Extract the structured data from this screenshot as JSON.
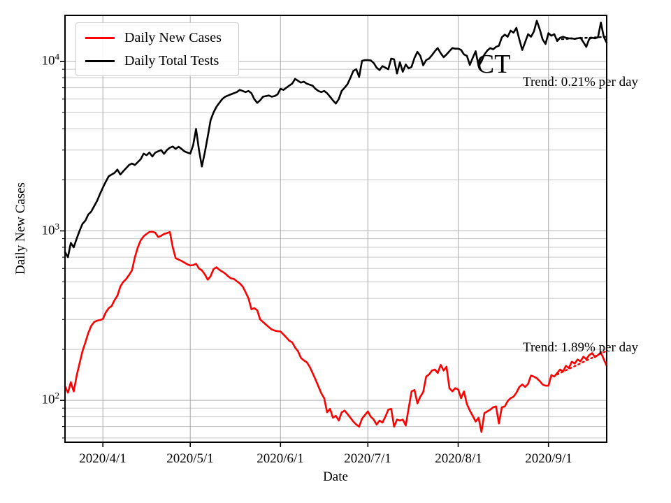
{
  "figure_title": "CT",
  "axes": {
    "x_label": "Date",
    "y_label": "Daily New Cases"
  },
  "legend": {
    "items": [
      {
        "label": "Daily New Cases",
        "color": "#ff0000"
      },
      {
        "label": "Daily Total Tests",
        "color": "#000000"
      }
    ]
  },
  "annotations": [
    {
      "id": "tests-trend",
      "text": "Trend: 0.21% per day"
    },
    {
      "id": "cases-trend",
      "text": "Trend: 1.89% per day"
    }
  ],
  "chart_data": {
    "type": "line",
    "title": "CT",
    "xlabel": "Date",
    "ylabel": "Daily New Cases",
    "y_scale": "log",
    "ylim": [
      56.6,
      18720
    ],
    "grid": true,
    "legend_position": "upper left",
    "x_start_date": "2020/3/19",
    "x_end_date": "2020/9/21",
    "x_ticks": [
      {
        "label": "2020/4/1",
        "day": 13
      },
      {
        "label": "2020/5/1",
        "day": 43
      },
      {
        "label": "2020/6/1",
        "day": 74
      },
      {
        "label": "2020/7/1",
        "day": 104
      },
      {
        "label": "2020/8/1",
        "day": 135
      },
      {
        "label": "2020/9/1",
        "day": 166
      }
    ],
    "y_ticks": [
      {
        "base": "10",
        "exp": "2"
      },
      {
        "base": "10",
        "exp": "3"
      },
      {
        "base": "10",
        "exp": "4"
      }
    ],
    "series": [
      {
        "name": "Daily New Cases",
        "color": "#ff0000",
        "style": "solid",
        "start_day": 0,
        "values": [
          121,
          111,
          128,
          113,
          140,
          165,
          195,
          220,
          250,
          275,
          290,
          295,
          298,
          302,
          330,
          350,
          360,
          390,
          415,
          470,
          500,
          520,
          550,
          585,
          700,
          800,
          880,
          930,
          960,
          985,
          990,
          975,
          920,
          935,
          960,
          970,
          985,
          800,
          690,
          677,
          665,
          650,
          635,
          625,
          628,
          640,
          600,
          585,
          555,
          515,
          540,
          595,
          610,
          590,
          575,
          560,
          540,
          525,
          520,
          505,
          490,
          470,
          435,
          400,
          345,
          350,
          340,
          300,
          290,
          280,
          270,
          262,
          258,
          256,
          255,
          245,
          235,
          225,
          220,
          205,
          195,
          178,
          172,
          168,
          158,
          145,
          133,
          121,
          110,
          103,
          85,
          89,
          79,
          81,
          76,
          85,
          87,
          83,
          79,
          75,
          72,
          70,
          78,
          82,
          86,
          80,
          77,
          72,
          76,
          74,
          80,
          88,
          89,
          70,
          77,
          76,
          77,
          71,
          90,
          113,
          115,
          96,
          105,
          112,
          138,
          142,
          150,
          152,
          145,
          162,
          150,
          158,
          118,
          113,
          118,
          116,
          103,
          113,
          95,
          87,
          81,
          75,
          79,
          65,
          84,
          86,
          88,
          91,
          92,
          73,
          91,
          92,
          99,
          103,
          105,
          111,
          120,
          124,
          120,
          125,
          140,
          138,
          135,
          130,
          124,
          122,
          122,
          141,
          138,
          145,
          152,
          148,
          160,
          155,
          169,
          165,
          174,
          170,
          181,
          175,
          185,
          190,
          180,
          185,
          192,
          175,
          160
        ]
      },
      {
        "name": "Daily Total Tests",
        "color": "#000000",
        "style": "solid",
        "start_day": 0,
        "values": [
          750,
          700,
          850,
          800,
          900,
          1000,
          1100,
          1150,
          1250,
          1300,
          1400,
          1500,
          1650,
          1800,
          1950,
          2100,
          2150,
          2200,
          2300,
          2150,
          2250,
          2350,
          2450,
          2500,
          2450,
          2550,
          2650,
          2860,
          2800,
          2900,
          2750,
          2900,
          2950,
          3000,
          2850,
          3000,
          3100,
          3150,
          3050,
          3140,
          3050,
          2950,
          2900,
          2860,
          3200,
          4000,
          3000,
          2400,
          2900,
          3600,
          4500,
          5000,
          5400,
          5700,
          6000,
          6200,
          6300,
          6400,
          6500,
          6600,
          6800,
          6700,
          6600,
          6700,
          6500,
          6000,
          5700,
          5900,
          6200,
          6250,
          6300,
          6200,
          6250,
          6400,
          6900,
          6800,
          7000,
          7200,
          7400,
          7900,
          7700,
          7500,
          7600,
          7400,
          7300,
          7200,
          6900,
          6700,
          6600,
          6700,
          6500,
          6200,
          5900,
          5650,
          6000,
          6700,
          7000,
          7350,
          8000,
          8800,
          9000,
          8100,
          10100,
          10200,
          10200,
          10150,
          9800,
          9200,
          8900,
          9400,
          9200,
          9000,
          10400,
          10300,
          8500,
          9900,
          8700,
          9600,
          9100,
          9300,
          10500,
          11400,
          10800,
          9500,
          10200,
          10400,
          10900,
          11500,
          12000,
          11200,
          10600,
          11000,
          11500,
          12000,
          11900,
          11900,
          11700,
          11000,
          10800,
          9550,
          10500,
          11500,
          9400,
          10000,
          11000,
          11600,
          12000,
          11800,
          12200,
          12400,
          13900,
          14400,
          14000,
          15200,
          14800,
          15800,
          13500,
          11700,
          13000,
          14500,
          14000,
          15000,
          17400,
          15500,
          13500,
          12700,
          14700,
          14200,
          14500,
          13200,
          13800,
          14000,
          13800,
          13700,
          13700,
          13600,
          13700,
          13800,
          13000,
          12200,
          13600,
          13800,
          13700,
          13900,
          17000,
          14000,
          12900
        ]
      },
      {
        "name": "Daily New Cases Trend Fit",
        "color": "#ff0000",
        "style": "dotted",
        "rate": "1.89% per day",
        "start_day": 169,
        "end_day": 186,
        "start_value": 142,
        "end_value": 196
      },
      {
        "name": "Daily Total Tests Trend Fit",
        "color": "#000000",
        "style": "dotted",
        "rate": "0.21% per day",
        "start_day": 169,
        "end_day": 186,
        "start_value": 13500,
        "end_value": 14000
      }
    ]
  }
}
